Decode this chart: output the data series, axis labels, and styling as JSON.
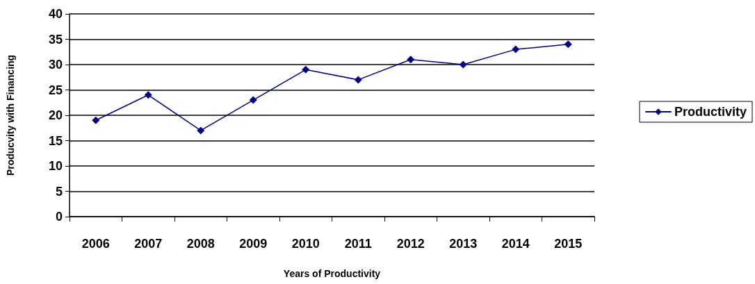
{
  "chart_data": {
    "type": "line",
    "xlabel": "Years of Productivity",
    "ylabel": "Producvity with Financing",
    "categories": [
      "2006",
      "2007",
      "2008",
      "2009",
      "2010",
      "2011",
      "2012",
      "2013",
      "2014",
      "2015"
    ],
    "series": [
      {
        "name": "Productivity",
        "color": "#000080",
        "values": [
          19,
          24,
          17,
          23,
          29,
          27,
          31,
          30,
          33,
          34
        ]
      }
    ],
    "ylim": [
      0,
      40
    ],
    "yticks": [
      0,
      5,
      10,
      15,
      20,
      25,
      30,
      35,
      40
    ],
    "grid": "y",
    "legend": "right",
    "marker": "diamond",
    "line_style": "solid"
  }
}
